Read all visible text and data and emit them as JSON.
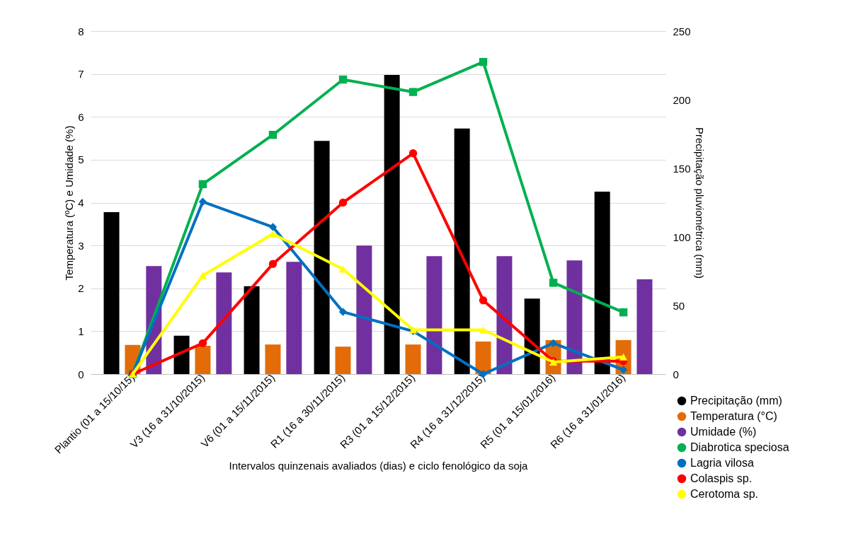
{
  "chart_data": {
    "type": "bar",
    "xlabel": "Intervalos quinzenais avaliados (dias) e ciclo fenológico da soja",
    "ylabel": "Temperatura (ºC) e Umidade (%)",
    "y2label": "Precipitação pluviométrica (mm)",
    "categories": [
      "Plantio (01 a 15/10/15)",
      "V3 (16 a 31/10/2015)",
      "V6 (01 a 15/11/2015)",
      "R1 (16 a 30/11/2015)",
      "R3 (01 a 15/12/2015)",
      "R4 (16 a 31/12/2015)",
      "R5 (01 a 15/01/2016)",
      "R6 (16 a 31/01/2016)"
    ],
    "ylim": [
      0,
      8
    ],
    "yticks": [
      0,
      1,
      2,
      3,
      4,
      5,
      6,
      7,
      8
    ],
    "y2lim": [
      0,
      250
    ],
    "y2ticks": [
      0,
      50,
      100,
      150,
      200,
      250
    ],
    "grid": "y",
    "legend": "bottom right",
    "series": [
      {
        "name": "Precipitação (mm)",
        "axis": "y2",
        "color": "#000000",
        "values": [
          118,
          28,
          64,
          170,
          218,
          179,
          55,
          133
        ]
      },
      {
        "name": "Temperatura (°C)",
        "color": "#e36c09",
        "values": [
          0.68,
          0.66,
          0.69,
          0.64,
          0.69,
          0.76,
          0.79,
          0.79
        ]
      },
      {
        "name": "Umidade (%)",
        "color": "#7030a0",
        "values": [
          2.52,
          2.37,
          2.62,
          3.0,
          2.75,
          2.75,
          2.65,
          2.21
        ]
      },
      {
        "name": "Diabrotica speciosa",
        "type": "line",
        "marker": "square",
        "color": "#00b050",
        "values": [
          0,
          4.43,
          5.58,
          6.87,
          6.58,
          7.28,
          2.13,
          1.44
        ]
      },
      {
        "name": "Lagria vilosa",
        "type": "line",
        "marker": "diamond",
        "color": "#0070c0",
        "values": [
          0,
          4.02,
          3.43,
          1.45,
          1.0,
          0,
          0.72,
          0.1
        ]
      },
      {
        "name": "Colaspis sp.",
        "type": "line",
        "marker": "circle",
        "color": "#ff0000",
        "values": [
          0,
          0.72,
          2.57,
          4.0,
          5.15,
          1.72,
          0.3,
          0.3
        ]
      },
      {
        "name": "Cerotoma sp.",
        "type": "line",
        "marker": "triangle",
        "color": "#ffff00",
        "values": [
          0,
          2.3,
          3.27,
          2.45,
          1.03,
          1.03,
          0.28,
          0.4
        ]
      }
    ]
  }
}
